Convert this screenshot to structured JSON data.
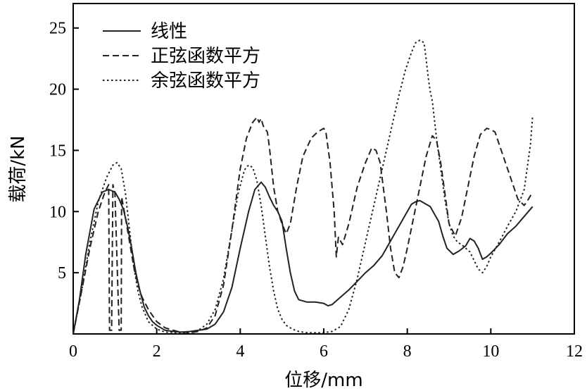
{
  "chart_data": {
    "type": "line",
    "title": "",
    "xlabel": "位移/mm",
    "ylabel": "载荷/kN",
    "xlim": [
      0,
      12
    ],
    "ylim": [
      0,
      27
    ],
    "xticks": [
      0,
      2,
      4,
      6,
      8,
      10,
      12
    ],
    "yticks": [
      5,
      10,
      15,
      20,
      25
    ],
    "grid": false,
    "legend": {
      "position": "top-left"
    },
    "series": [
      {
        "name": "线性",
        "style": "solid",
        "x": [
          0,
          0.15,
          0.3,
          0.5,
          0.7,
          0.85,
          1.0,
          1.1,
          1.2,
          1.3,
          1.4,
          1.5,
          1.6,
          1.7,
          1.8,
          1.9,
          2.0,
          2.1,
          2.2,
          2.4,
          2.6,
          2.8,
          3.0,
          3.2,
          3.4,
          3.6,
          3.8,
          4.0,
          4.2,
          4.35,
          4.5,
          4.6,
          4.7,
          4.8,
          4.9,
          5.0,
          5.1,
          5.2,
          5.3,
          5.4,
          5.6,
          5.8,
          6.0,
          6.1,
          6.2,
          6.4,
          6.6,
          6.8,
          7.0,
          7.2,
          7.4,
          7.6,
          7.8,
          8.0,
          8.1,
          8.2,
          8.3,
          8.45,
          8.55,
          8.65,
          8.75,
          8.85,
          8.95,
          9.1,
          9.25,
          9.4,
          9.5,
          9.6,
          9.7,
          9.8,
          9.9,
          10.0,
          10.2,
          10.4,
          10.6,
          10.8,
          11.0
        ],
        "y": [
          0,
          2.8,
          6.5,
          10.2,
          11.6,
          11.8,
          11.6,
          11.0,
          10.2,
          8.8,
          7.0,
          5.0,
          3.5,
          2.2,
          1.5,
          1.0,
          0.7,
          0.5,
          0.3,
          0.2,
          0.15,
          0.2,
          0.3,
          0.4,
          0.8,
          1.8,
          3.8,
          7.0,
          10.0,
          11.8,
          12.4,
          12.0,
          11.2,
          10.5,
          10.0,
          9.2,
          7.0,
          5.0,
          3.5,
          2.8,
          2.6,
          2.6,
          2.5,
          2.3,
          2.4,
          3.0,
          3.6,
          4.3,
          5.0,
          5.6,
          6.4,
          7.6,
          8.8,
          10.0,
          10.6,
          10.8,
          10.9,
          10.6,
          10.4,
          9.8,
          9.2,
          8.0,
          7.0,
          6.5,
          6.8,
          7.2,
          7.8,
          7.6,
          7.0,
          6.1,
          6.3,
          6.6,
          7.3,
          8.2,
          8.8,
          9.6,
          10.4
        ]
      },
      {
        "name": "正弦函数平方",
        "style": "dashed",
        "x": [
          0,
          0.2,
          0.4,
          0.6,
          0.75,
          0.85,
          0.87,
          0.92,
          0.95,
          1.0,
          1.1,
          1.15,
          1.16,
          1.25,
          1.35,
          1.45,
          1.55,
          1.65,
          1.8,
          2.0,
          2.2,
          2.5,
          2.8,
          3.0,
          3.2,
          3.4,
          3.6,
          3.8,
          4.0,
          4.15,
          4.3,
          4.4,
          4.45,
          4.5,
          4.55,
          4.65,
          4.7,
          4.8,
          4.9,
          5.0,
          5.1,
          5.2,
          5.35,
          5.5,
          5.7,
          5.85,
          6.0,
          6.05,
          6.15,
          6.25,
          6.3,
          6.35,
          6.45,
          6.6,
          6.8,
          7.0,
          7.15,
          7.25,
          7.35,
          7.5,
          7.6,
          7.7,
          7.8,
          7.9,
          8.0,
          8.15,
          8.3,
          8.45,
          8.6,
          8.7,
          8.8,
          8.9,
          9.0,
          9.15,
          9.3,
          9.45,
          9.6,
          9.75,
          9.9,
          10.0,
          10.1,
          10.2,
          10.35,
          10.5,
          10.65,
          10.8,
          10.9,
          11.0
        ],
        "y": [
          0,
          3.5,
          7.0,
          10.0,
          11.5,
          12.2,
          0.3,
          0.3,
          12.2,
          11.5,
          0.3,
          0.3,
          11.2,
          9.5,
          7.5,
          5.5,
          4.0,
          3.0,
          2.0,
          1.0,
          0.5,
          0.2,
          0.1,
          0.2,
          0.5,
          1.5,
          4.0,
          8.5,
          13.5,
          16.0,
          17.3,
          17.7,
          17.3,
          17.6,
          17.0,
          16.5,
          15.2,
          12.0,
          10.0,
          9.0,
          8.2,
          9.0,
          12.0,
          14.5,
          16.0,
          16.5,
          16.8,
          16.5,
          14.0,
          10.0,
          6.3,
          7.9,
          7.3,
          9.0,
          12.0,
          14.0,
          15.2,
          15.0,
          14.0,
          10.0,
          7.0,
          5.0,
          4.6,
          5.5,
          7.0,
          9.5,
          12.0,
          14.5,
          16.2,
          15.8,
          14.0,
          11.5,
          9.0,
          8.0,
          9.5,
          12.0,
          14.5,
          16.3,
          16.8,
          16.7,
          16.5,
          15.5,
          14.0,
          12.5,
          11.0,
          10.5,
          11.0,
          11.6
        ]
      },
      {
        "name": "余弦函数平方",
        "style": "dotted",
        "x": [
          0,
          0.2,
          0.4,
          0.6,
          0.8,
          0.95,
          1.05,
          1.15,
          1.25,
          1.35,
          1.45,
          1.55,
          1.65,
          1.8,
          2.0,
          2.2,
          2.5,
          2.8,
          3.0,
          3.2,
          3.4,
          3.6,
          3.8,
          3.95,
          4.1,
          4.2,
          4.3,
          4.4,
          4.5,
          4.6,
          4.7,
          4.8,
          4.9,
          5.0,
          5.1,
          5.25,
          5.4,
          5.6,
          5.8,
          6.0,
          6.2,
          6.4,
          6.6,
          6.8,
          7.0,
          7.2,
          7.4,
          7.6,
          7.8,
          7.95,
          8.1,
          8.2,
          8.3,
          8.4,
          8.45,
          8.5,
          8.55,
          8.6,
          8.7,
          8.8,
          8.9,
          9.0,
          9.1,
          9.2,
          9.3,
          9.4,
          9.5,
          9.6,
          9.7,
          9.8,
          9.9,
          10.0,
          10.2,
          10.4,
          10.6,
          10.8,
          10.95,
          11.0
        ],
        "y": [
          0,
          3.5,
          7.5,
          10.8,
          12.8,
          13.8,
          14.0,
          13.5,
          11.5,
          8.5,
          5.5,
          3.5,
          2.2,
          1.0,
          0.4,
          0.15,
          0.1,
          0.1,
          0.3,
          0.8,
          2.0,
          4.5,
          8.5,
          11.5,
          13.4,
          13.8,
          13.6,
          12.5,
          10.5,
          8.0,
          5.5,
          3.5,
          2.0,
          1.2,
          0.7,
          0.4,
          0.2,
          0.1,
          0.1,
          0.1,
          0.2,
          0.6,
          2.0,
          4.5,
          7.5,
          10.5,
          13.5,
          16.5,
          19.5,
          21.5,
          23.0,
          23.8,
          24.0,
          23.8,
          22.5,
          21.0,
          19.8,
          19.0,
          16.0,
          13.5,
          11.0,
          9.0,
          8.0,
          7.5,
          7.3,
          7.0,
          6.7,
          6.0,
          5.3,
          5.0,
          5.5,
          6.3,
          7.5,
          8.8,
          10.0,
          11.8,
          15.5,
          17.8
        ]
      }
    ]
  }
}
